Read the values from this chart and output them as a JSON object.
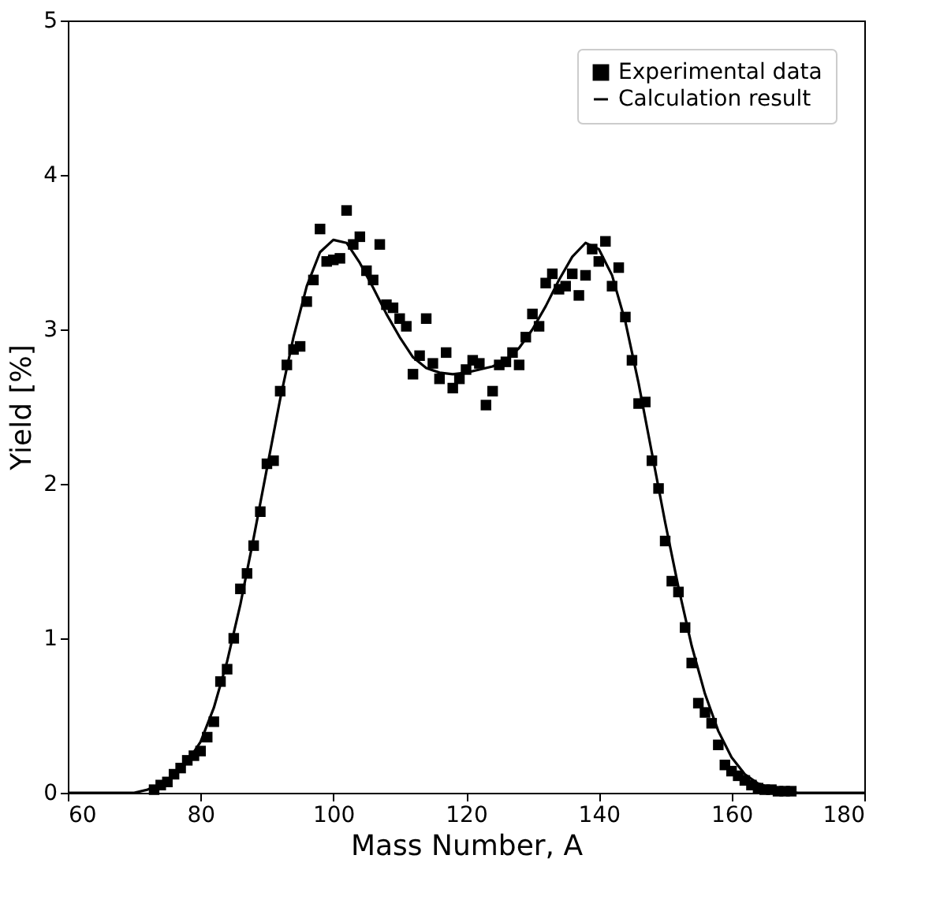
{
  "chart_data": {
    "type": "scatter",
    "xlabel": "Mass Number, A",
    "ylabel": "Yield [%]",
    "xlim": [
      60,
      180
    ],
    "xticks": [
      60,
      80,
      100,
      120,
      140,
      160,
      180
    ],
    "ylim": [
      0,
      5
    ],
    "yticks": [
      0,
      1,
      2,
      3,
      4,
      5
    ],
    "grid": false,
    "legend": "top right",
    "series": [
      {
        "name": "Experimental data",
        "marker": "square",
        "color": "#000000",
        "x": [
          73,
          74,
          75,
          76,
          77,
          78,
          79,
          80,
          81,
          82,
          83,
          84,
          85,
          86,
          87,
          88,
          89,
          90,
          91,
          92,
          93,
          94,
          95,
          96,
          97,
          98,
          99,
          100,
          101,
          102,
          103,
          104,
          105,
          106,
          107,
          108,
          109,
          110,
          111,
          112,
          113,
          114,
          115,
          116,
          117,
          118,
          119,
          120,
          121,
          122,
          123,
          124,
          125,
          126,
          127,
          128,
          129,
          130,
          131,
          132,
          133,
          134,
          135,
          136,
          137,
          138,
          139,
          140,
          141,
          142,
          143,
          144,
          145,
          146,
          147,
          148,
          149,
          150,
          151,
          152,
          153,
          154,
          155,
          156,
          157,
          158,
          159,
          160,
          161,
          162,
          163,
          164,
          165,
          166,
          167,
          168,
          169
        ],
        "values": [
          0.02,
          0.05,
          0.07,
          0.12,
          0.16,
          0.21,
          0.24,
          0.27,
          0.36,
          0.46,
          0.72,
          0.8,
          1.0,
          1.32,
          1.42,
          1.6,
          1.82,
          2.13,
          2.15,
          2.6,
          2.77,
          2.87,
          2.89,
          3.18,
          3.32,
          3.65,
          3.44,
          3.45,
          3.46,
          3.77,
          3.55,
          3.6,
          3.38,
          3.32,
          3.55,
          3.16,
          3.14,
          3.07,
          3.02,
          2.71,
          2.83,
          3.07,
          2.78,
          2.68,
          2.85,
          2.62,
          2.68,
          2.74,
          2.8,
          2.78,
          2.51,
          2.6,
          2.77,
          2.79,
          2.85,
          2.77,
          2.95,
          3.1,
          3.02,
          3.3,
          3.36,
          3.26,
          3.28,
          3.36,
          3.22,
          3.35,
          3.52,
          3.44,
          3.57,
          3.28,
          3.4,
          3.08,
          2.8,
          2.52,
          2.53,
          2.15,
          1.97,
          1.63,
          1.37,
          1.3,
          1.07,
          0.84,
          0.58,
          0.52,
          0.45,
          0.31,
          0.18,
          0.14,
          0.11,
          0.08,
          0.05,
          0.03,
          0.02,
          0.02,
          0.01,
          0.01,
          0.01
        ]
      },
      {
        "name": "Calculation result",
        "type": "line",
        "marker": "none",
        "line_style": "solid",
        "color": "#000000",
        "x": [
          60,
          70,
          72,
          75,
          78,
          80,
          82,
          84,
          86,
          88,
          90,
          92,
          94,
          96,
          98,
          100,
          102,
          104,
          106,
          108,
          110,
          112,
          114,
          116,
          118,
          120,
          122,
          124,
          126,
          128,
          130,
          132,
          134,
          136,
          138,
          140,
          142,
          144,
          146,
          148,
          150,
          152,
          154,
          156,
          158,
          160,
          162,
          164,
          166,
          168,
          170,
          175,
          180
        ],
        "values": [
          0,
          0,
          0.02,
          0.07,
          0.2,
          0.33,
          0.55,
          0.85,
          1.22,
          1.65,
          2.1,
          2.55,
          2.95,
          3.28,
          3.5,
          3.58,
          3.56,
          3.43,
          3.27,
          3.1,
          2.95,
          2.82,
          2.75,
          2.72,
          2.71,
          2.72,
          2.74,
          2.76,
          2.8,
          2.88,
          3.0,
          3.15,
          3.32,
          3.47,
          3.56,
          3.52,
          3.35,
          3.05,
          2.65,
          2.2,
          1.75,
          1.33,
          0.95,
          0.64,
          0.4,
          0.23,
          0.12,
          0.06,
          0.03,
          0.01,
          0,
          0,
          0
        ]
      }
    ]
  }
}
